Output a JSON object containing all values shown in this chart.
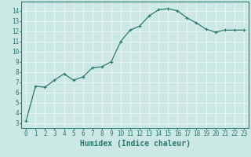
{
  "x": [
    0,
    1,
    2,
    3,
    4,
    5,
    6,
    7,
    8,
    9,
    10,
    11,
    12,
    13,
    14,
    15,
    16,
    17,
    18,
    19,
    20,
    21,
    22,
    23
  ],
  "y": [
    3.2,
    6.6,
    6.5,
    7.2,
    7.8,
    7.2,
    7.5,
    8.4,
    8.5,
    9.0,
    11.0,
    12.1,
    12.5,
    13.5,
    14.1,
    14.2,
    14.0,
    13.3,
    12.8,
    12.2,
    11.9,
    12.1,
    12.1,
    12.1
  ],
  "line_color": "#2a7a6e",
  "marker": "+",
  "marker_size": 3,
  "bg_color": "#cce8e4",
  "grid_white_color": "#e8f5f3",
  "grid_pink_color": "#d8b8bb",
  "xlabel": "Humidex (Indice chaleur)",
  "xlabel_fontsize": 7,
  "ylabel_ticks": [
    3,
    4,
    5,
    6,
    7,
    8,
    9,
    10,
    11,
    12,
    13,
    14
  ],
  "xlim": [
    -0.5,
    23.5
  ],
  "ylim": [
    2.5,
    14.9
  ],
  "tick_color": "#2a7a6e",
  "tick_fontsize": 5.5,
  "spine_color": "#2a7a6e"
}
